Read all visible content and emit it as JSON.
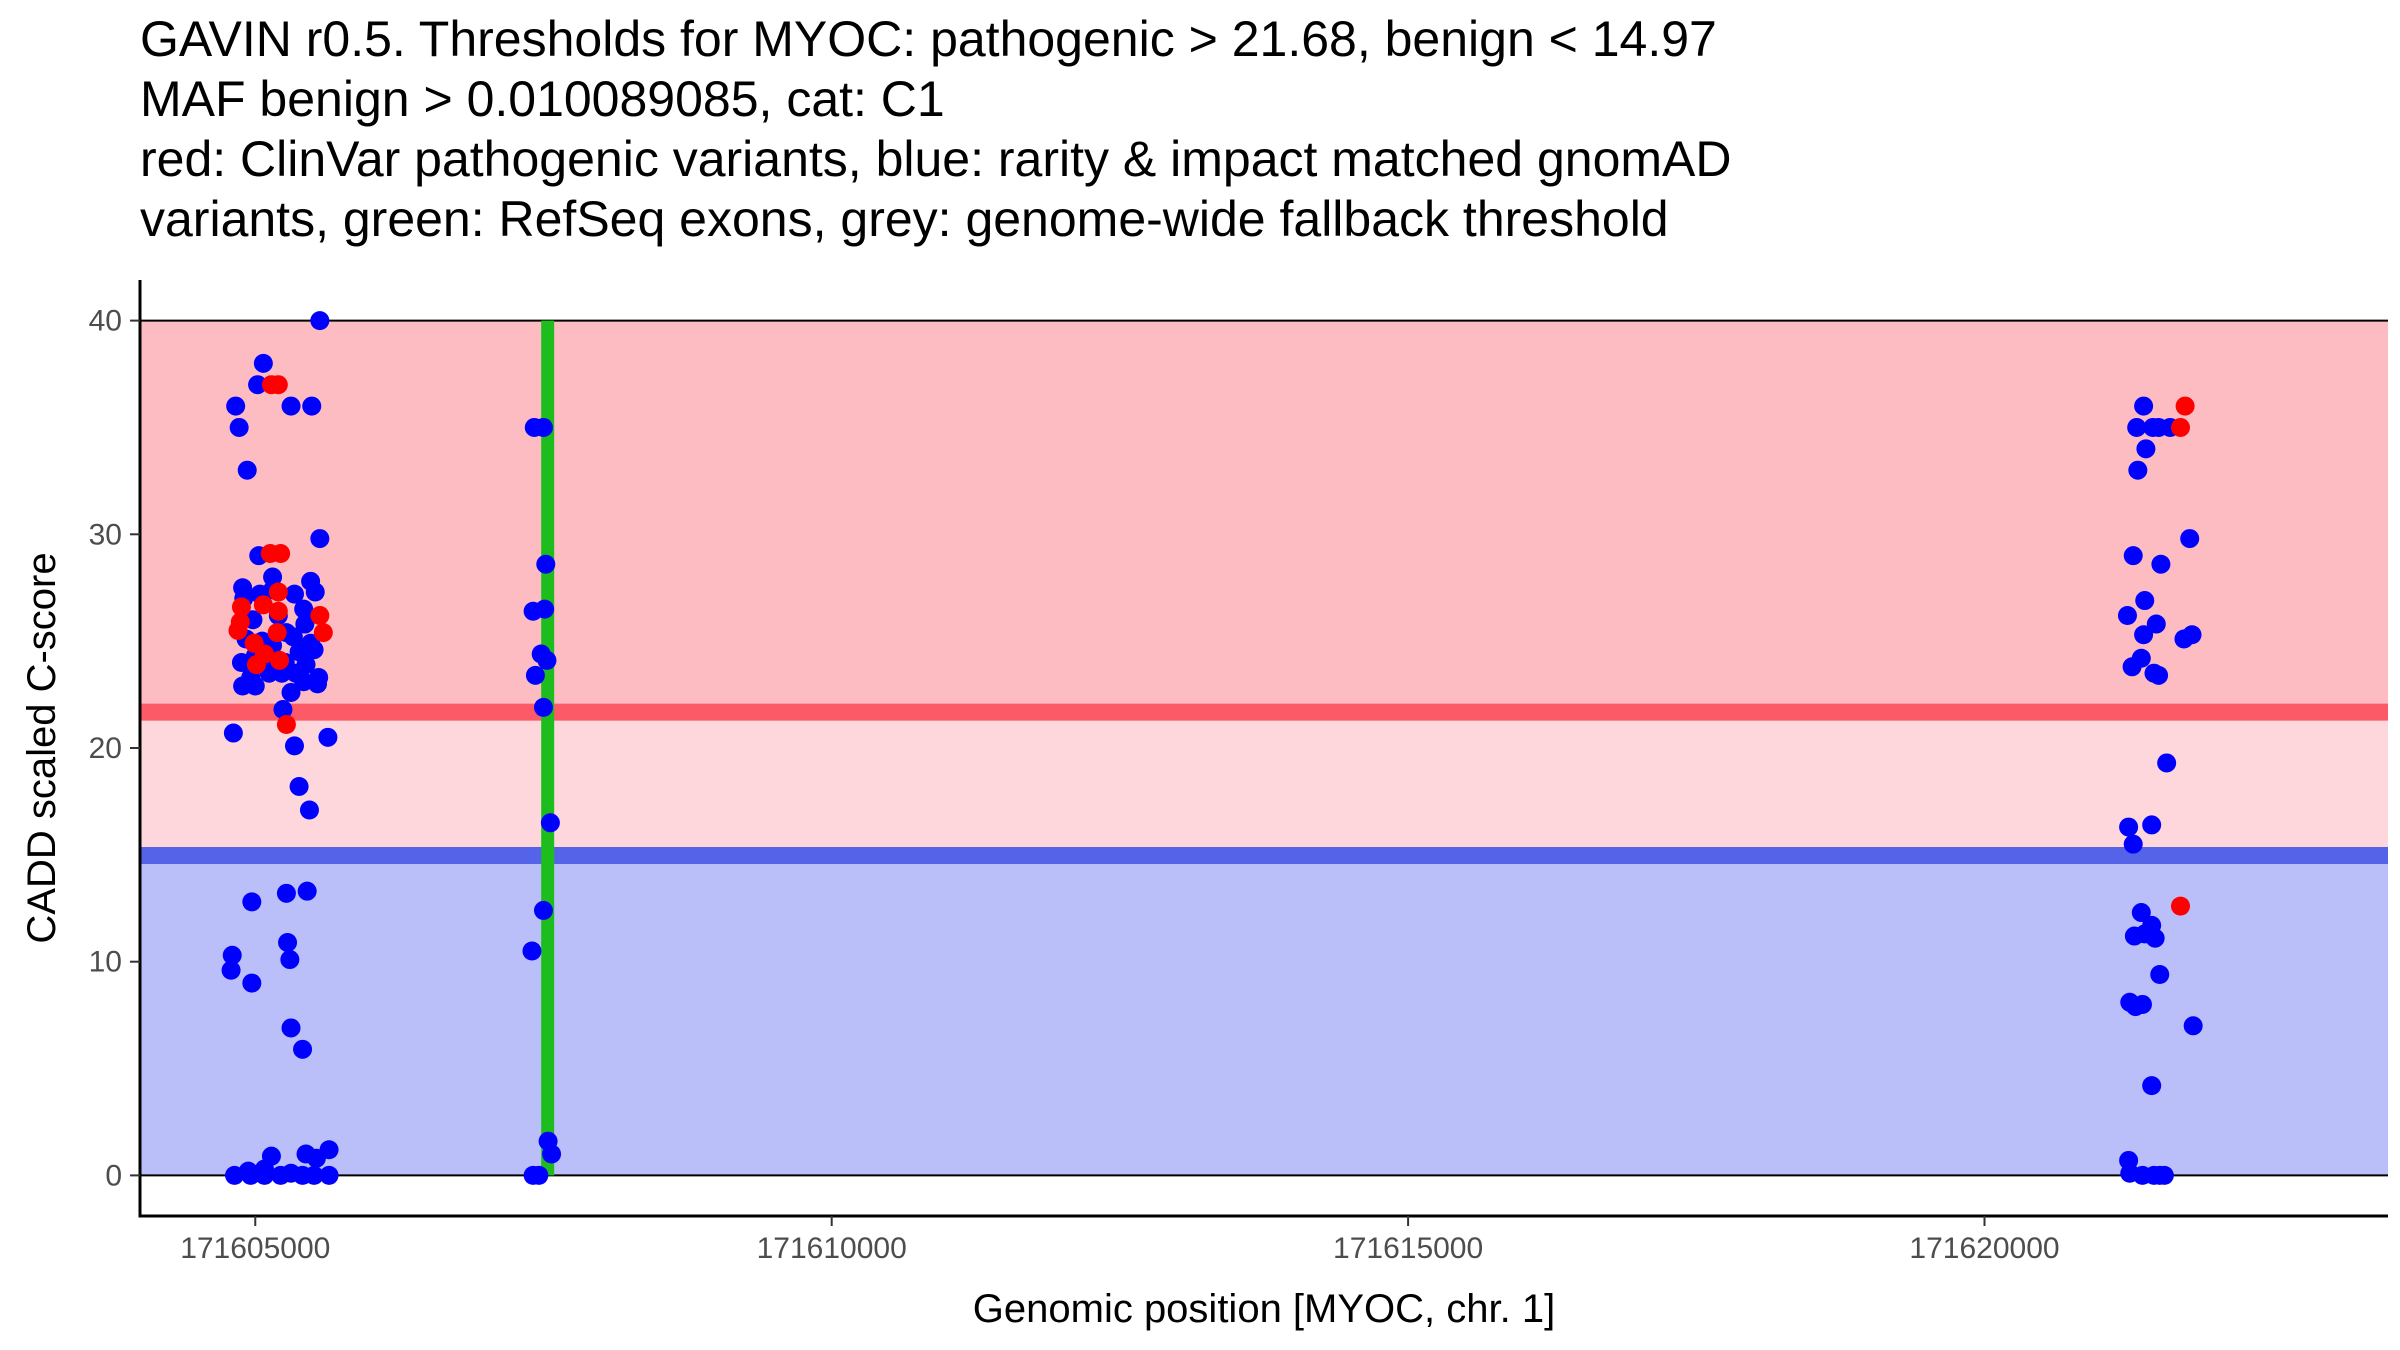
{
  "title_lines": [
    "GAVIN r0.5. Thresholds for MYOC: pathogenic > 21.68, benign < 14.97",
    "MAF benign > 0.010089085, cat: C1",
    "red: ClinVar pathogenic variants, blue: rarity & impact matched gnomAD",
    "variants, green: RefSeq exons, grey: genome-wide fallback threshold"
  ],
  "colors": {
    "pathogenic_band": "#fdbcc1",
    "intermediate_band": "#fdd7dc",
    "benign_band": "#babff9",
    "pathogenic_line": "#fd5a68",
    "benign_line": "#5563e8",
    "exon": "#1ebd1e",
    "clinvar_point": "#ff0000",
    "gnomad_point": "#0000ff"
  },
  "chart_data": {
    "type": "scatter",
    "title": "GAVIN r0.5. Thresholds for MYOC: pathogenic > 21.68, benign < 14.97",
    "xlabel": "Genomic position [MYOC, chr. 1]",
    "ylabel": "CADD scaled C-score",
    "xlim": [
      171604000,
      171623500
    ],
    "ylim": [
      -1.9,
      41.9
    ],
    "x_ticks": [
      171605000,
      171610000,
      171615000,
      171620000
    ],
    "x_tick_labels": [
      "171605000",
      "171610000",
      "171615000",
      "171620000"
    ],
    "y_ticks": [
      0,
      10,
      20,
      30,
      40
    ],
    "y_tick_labels": [
      "0",
      "10",
      "20",
      "30",
      "40"
    ],
    "thresholds": {
      "pathogenic": 21.68,
      "benign": 14.97,
      "maf_benign": 0.010089085,
      "category": "C1"
    },
    "exons": [
      {
        "start": 171607480,
        "end": 171607560
      }
    ],
    "series": [
      {
        "name": "rarity & impact matched gnomAD variants",
        "color": "blue",
        "points": [
          [
            171604830,
            36
          ],
          [
            171604860,
            35
          ],
          [
            171604930,
            33
          ],
          [
            171605020,
            37
          ],
          [
            171605070,
            38
          ],
          [
            171605560,
            40
          ],
          [
            171605310,
            36
          ],
          [
            171605490,
            36
          ],
          [
            171605560,
            29.8
          ],
          [
            171605150,
            28
          ],
          [
            171605030,
            29
          ],
          [
            171605480,
            27.8
          ],
          [
            171604890,
            27.5
          ],
          [
            171604900,
            27
          ],
          [
            171605040,
            27.2
          ],
          [
            171605150,
            27.4
          ],
          [
            171605340,
            27.2
          ],
          [
            171605520,
            27.3
          ],
          [
            171605420,
            26.5
          ],
          [
            171605200,
            26.2
          ],
          [
            171604980,
            26
          ],
          [
            171605430,
            25.8
          ],
          [
            171605330,
            25.2
          ],
          [
            171605270,
            25.4
          ],
          [
            171605060,
            25
          ],
          [
            171605480,
            24.9
          ],
          [
            171604920,
            25.1
          ],
          [
            171605150,
            24.8
          ],
          [
            171605380,
            24.5
          ],
          [
            171605510,
            24.6
          ],
          [
            171605000,
            24.3
          ],
          [
            171605260,
            24.0
          ],
          [
            171604880,
            24.0
          ],
          [
            171605440,
            23.9
          ],
          [
            171605100,
            23.8
          ],
          [
            171605230,
            23.5
          ],
          [
            171605350,
            23.5
          ],
          [
            171604960,
            23.3
          ],
          [
            171605550,
            23.3
          ],
          [
            171605120,
            23.5
          ],
          [
            171605420,
            23.1
          ],
          [
            171605540,
            23.0
          ],
          [
            171605000,
            22.9
          ],
          [
            171604890,
            22.9
          ],
          [
            171605310,
            22.6
          ],
          [
            171605240,
            21.8
          ],
          [
            171604810,
            20.7
          ],
          [
            171605630,
            20.5
          ],
          [
            171605340,
            20.1
          ],
          [
            171605380,
            18.2
          ],
          [
            171605470,
            17.1
          ],
          [
            171605450,
            13.3
          ],
          [
            171605270,
            13.2
          ],
          [
            171604970,
            12.8
          ],
          [
            171605280,
            10.9
          ],
          [
            171605300,
            10.1
          ],
          [
            171604800,
            10.3
          ],
          [
            171604790,
            9.6
          ],
          [
            171604970,
            9.0
          ],
          [
            171605310,
            6.9
          ],
          [
            171605410,
            5.9
          ],
          [
            171605640,
            1.2
          ],
          [
            171605440,
            1.0
          ],
          [
            171605530,
            0.8
          ],
          [
            171605140,
            0.9
          ],
          [
            171605080,
            0.3
          ],
          [
            171604940,
            0.2
          ],
          [
            171605310,
            0.1
          ],
          [
            171604820,
            0
          ],
          [
            171604960,
            0
          ],
          [
            171605080,
            0
          ],
          [
            171605410,
            0
          ],
          [
            171605510,
            0
          ],
          [
            171605640,
            0
          ],
          [
            171605220,
            0
          ],
          [
            171607420,
            35
          ],
          [
            171607500,
            35
          ],
          [
            171607520,
            28.6
          ],
          [
            171607410,
            26.4
          ],
          [
            171607510,
            26.5
          ],
          [
            171607480,
            24.4
          ],
          [
            171607530,
            24.1
          ],
          [
            171607430,
            23.4
          ],
          [
            171607500,
            21.9
          ],
          [
            171607560,
            16.5
          ],
          [
            171607500,
            12.4
          ],
          [
            171607400,
            10.5
          ],
          [
            171607540,
            1.6
          ],
          [
            171607570,
            1.0
          ],
          [
            171607410,
            0
          ],
          [
            171607460,
            0
          ],
          [
            171621380,
            36
          ],
          [
            171621320,
            35
          ],
          [
            171621460,
            35
          ],
          [
            171621510,
            35
          ],
          [
            171621610,
            35
          ],
          [
            171621400,
            34
          ],
          [
            171621330,
            33
          ],
          [
            171621290,
            29
          ],
          [
            171621530,
            28.6
          ],
          [
            171621780,
            29.8
          ],
          [
            171621390,
            26.9
          ],
          [
            171621240,
            26.2
          ],
          [
            171621490,
            25.8
          ],
          [
            171621380,
            25.3
          ],
          [
            171621730,
            25.1
          ],
          [
            171621800,
            25.3
          ],
          [
            171621360,
            24.2
          ],
          [
            171621280,
            23.8
          ],
          [
            171621470,
            23.5
          ],
          [
            171621510,
            23.4
          ],
          [
            171621580,
            19.3
          ],
          [
            171621250,
            16.3
          ],
          [
            171621450,
            16.4
          ],
          [
            171621290,
            15.5
          ],
          [
            171621360,
            12.3
          ],
          [
            171621450,
            11.7
          ],
          [
            171621300,
            11.2
          ],
          [
            171621390,
            11.3
          ],
          [
            171621480,
            11.1
          ],
          [
            171621520,
            9.4
          ],
          [
            171621260,
            8.1
          ],
          [
            171621370,
            8.0
          ],
          [
            171621310,
            7.9
          ],
          [
            171621810,
            7.0
          ],
          [
            171621450,
            4.2
          ],
          [
            171621250,
            0.7
          ],
          [
            171621260,
            0.1
          ],
          [
            171621370,
            0
          ],
          [
            171621470,
            0
          ],
          [
            171621520,
            0
          ],
          [
            171621560,
            0
          ]
        ]
      },
      {
        "name": "ClinVar pathogenic variants",
        "color": "red",
        "points": [
          [
            171605140,
            37
          ],
          [
            171605200,
            37
          ],
          [
            171605130,
            29.1
          ],
          [
            171605220,
            29.1
          ],
          [
            171605200,
            27.3
          ],
          [
            171604880,
            26.6
          ],
          [
            171605070,
            26.7
          ],
          [
            171605200,
            26.4
          ],
          [
            171605560,
            26.2
          ],
          [
            171604870,
            25.9
          ],
          [
            171604850,
            25.5
          ],
          [
            171605190,
            25.4
          ],
          [
            171605590,
            25.4
          ],
          [
            171604990,
            24.9
          ],
          [
            171605080,
            24.4
          ],
          [
            171605010,
            23.9
          ],
          [
            171605210,
            24.1
          ],
          [
            171605270,
            21.1
          ],
          [
            171621740,
            36
          ],
          [
            171621700,
            35
          ],
          [
            171621700,
            12.6
          ]
        ]
      }
    ]
  }
}
